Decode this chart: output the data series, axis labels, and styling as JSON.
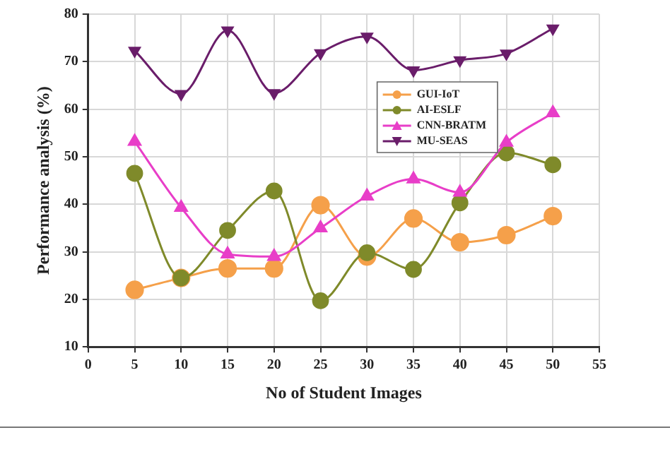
{
  "chart_data": {
    "type": "line",
    "xlabel": "No of Student Images",
    "ylabel": "Performance analysis (%)",
    "x": [
      5,
      10,
      15,
      20,
      25,
      30,
      35,
      40,
      45,
      50
    ],
    "series": [
      {
        "name": "GUI-IoT",
        "color": "#f5a04a",
        "marker": "circle",
        "values": [
          22,
          24.5,
          26.5,
          26.5,
          39.8,
          29,
          37,
          32,
          33.5,
          37.5
        ]
      },
      {
        "name": "AI-ESLF",
        "color": "#7f8a2a",
        "marker": "circle",
        "values": [
          46.5,
          24.5,
          34.5,
          42.8,
          19.7,
          29.8,
          26.3,
          40.3,
          50.8,
          48.3
        ]
      },
      {
        "name": "CNN-BRATM",
        "color": "#e83ec8",
        "marker": "triangle",
        "values": [
          53.2,
          39.3,
          29.5,
          29,
          35,
          41.7,
          45.3,
          42.5,
          53,
          59.2
        ]
      },
      {
        "name": "MU-SEAS",
        "color": "#6a1d6a",
        "marker": "triangle_down",
        "values": [
          72.3,
          63.2,
          76.6,
          63.4,
          71.8,
          75.3,
          68.2,
          70.3,
          71.7,
          77
        ]
      }
    ],
    "xlim": [
      0,
      55
    ],
    "xticks": [
      0,
      5,
      10,
      15,
      20,
      25,
      30,
      35,
      40,
      45,
      50,
      55
    ],
    "ylim": [
      10,
      80
    ],
    "yticks": [
      10,
      20,
      30,
      40,
      50,
      60,
      70,
      80
    ],
    "grid": true,
    "legend": "top right"
  }
}
